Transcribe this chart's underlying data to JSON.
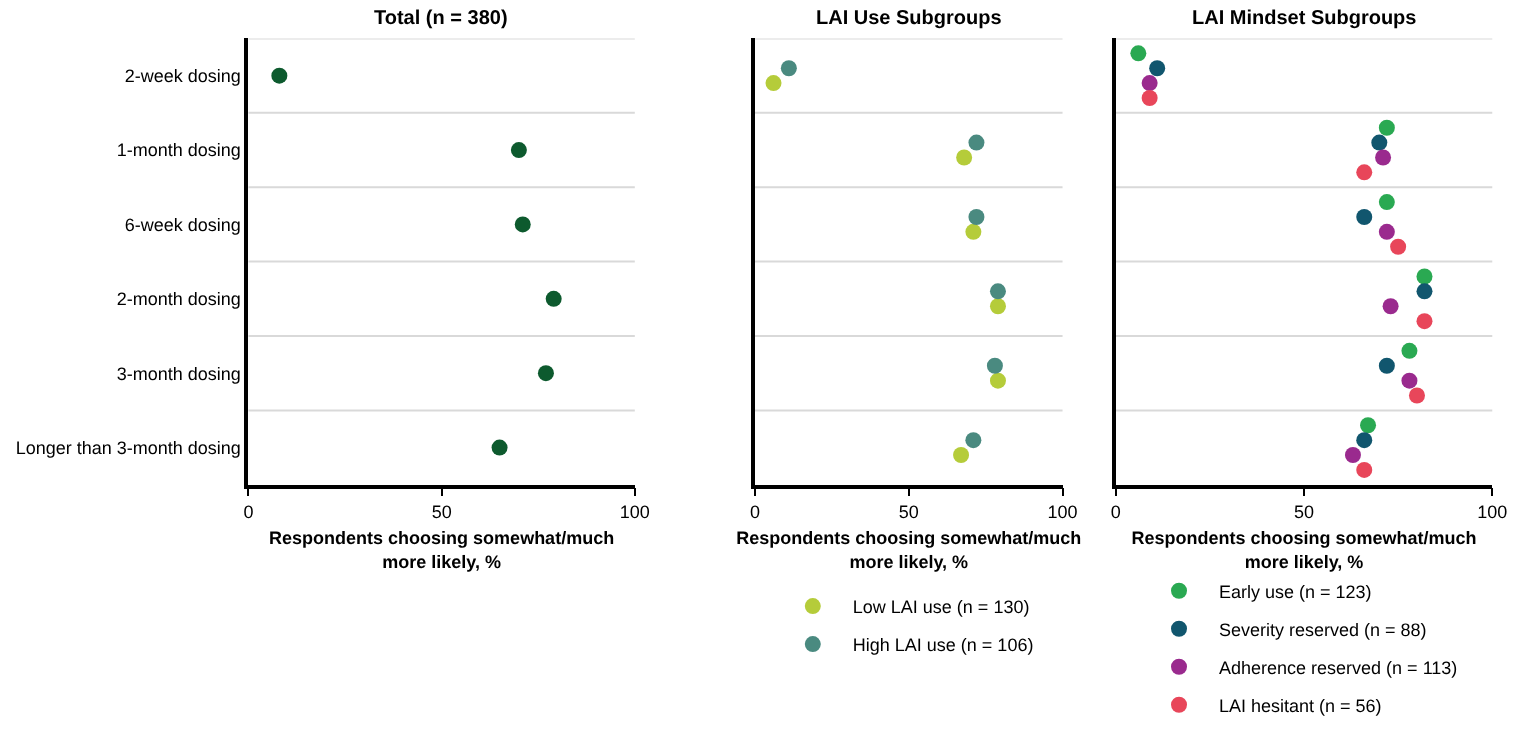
{
  "chart_data": [
    {
      "type": "scatter",
      "title": "Total (n = 380)",
      "xlabel": "Respondents choosing somewhat/much more likely, %",
      "categories": [
        "2-week dosing",
        "1-month dosing",
        "6-week dosing",
        "2-month dosing",
        "3-month dosing",
        "Longer than 3-month dosing"
      ],
      "orientation": "horizontal",
      "xlim": [
        0,
        100
      ],
      "xticks": [
        0,
        50,
        100
      ],
      "grid": "y",
      "marker": "circle",
      "legend": false,
      "series": [
        {
          "color": "#0d5a2e",
          "values": [
            8,
            70,
            71,
            79,
            77,
            65
          ]
        }
      ]
    },
    {
      "type": "scatter",
      "title": "LAI Use Subgroups",
      "xlabel": "Respondents choosing somewhat/much more likely, %",
      "categories": [
        null,
        null,
        null,
        null,
        null,
        null
      ],
      "orientation": "horizontal",
      "xlim": [
        0,
        100
      ],
      "xticks": [
        0,
        50,
        100
      ],
      "grid": "y",
      "marker": "circle",
      "legend": "bottom",
      "tick_labels": "x",
      "series": [
        {
          "name": "Low LAI use (n = 130)",
          "color": "#b5cc3a",
          "values": [
            6,
            68,
            71,
            79,
            79,
            67
          ]
        },
        {
          "name": "High LAI use (n = 106)",
          "color": "#4a8a80",
          "values": [
            11,
            72,
            72,
            79,
            78,
            71
          ]
        }
      ]
    },
    {
      "type": "scatter",
      "title": "LAI Mindset Subgroups",
      "xlabel": "Respondents choosing somewhat/much more likely, %",
      "categories": [
        null,
        null,
        null,
        null,
        null,
        null
      ],
      "orientation": "horizontal",
      "xlim": [
        0,
        100
      ],
      "xticks": [
        0,
        50,
        100
      ],
      "grid": "y",
      "marker": "circle",
      "legend": "bottom",
      "tick_labels": "x",
      "series": [
        {
          "name": "Early use (n = 123)",
          "color": "#2aa952",
          "values": [
            6,
            72,
            72,
            82,
            78,
            67
          ]
        },
        {
          "name": "Severity reserved (n = 88)",
          "color": "#11566e",
          "values": [
            11,
            70,
            66,
            82,
            72,
            66
          ]
        },
        {
          "name": "Adherence reserved (n = 113)",
          "color": "#9a2a8e",
          "values": [
            9,
            71,
            72,
            73,
            78,
            63
          ]
        },
        {
          "name": "LAI hesitant (n = 56)",
          "color": "#e8465a",
          "values": [
            9,
            66,
            75,
            82,
            80,
            66
          ]
        }
      ]
    }
  ]
}
